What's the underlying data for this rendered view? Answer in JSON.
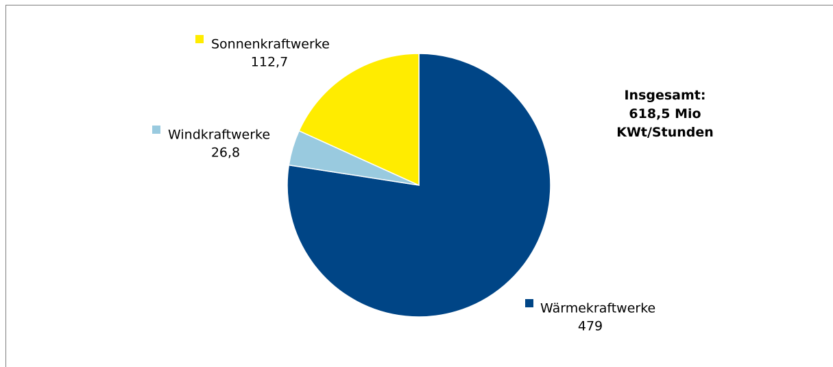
{
  "chart_data": {
    "type": "pie",
    "title": "",
    "slices": [
      {
        "label": "Wärmekraftwerke",
        "value_label": "479",
        "value": 479,
        "color": "#004586"
      },
      {
        "label": "Windkraftwerke",
        "value_label": "26,8",
        "value": 26.8,
        "color": "#99cadf"
      },
      {
        "label": "Sonnenkraftwerke",
        "value_label": "112,7",
        "value": 112.7,
        "color": "#ffec00"
      }
    ],
    "slice_border_color": "#ffffff",
    "legend": "labels beside slices"
  },
  "total_box": {
    "line1": "Insgesamt:",
    "line2": "618,5 Mio",
    "line3": "KWt/Stunden"
  }
}
